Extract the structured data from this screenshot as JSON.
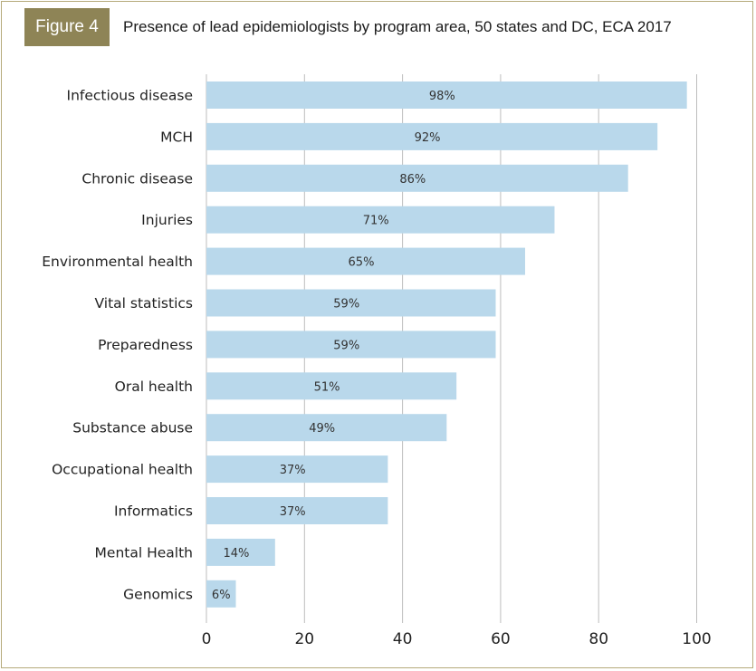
{
  "figure": {
    "tag": "Figure 4",
    "title": "Presence of lead epidemiologists by program area, 50 states and DC, ECA 2017"
  },
  "chart_data": {
    "type": "bar",
    "orientation": "horizontal",
    "title": "Presence of lead epidemiologists by program area, 50 states and DC, ECA 2017",
    "xlabel": "",
    "ylabel": "",
    "categories": [
      "Infectious disease",
      "MCH",
      "Chronic disease",
      "Injuries",
      "Environmental health",
      "Vital statistics",
      "Preparedness",
      "Oral health",
      "Substance abuse",
      "Occupational health",
      "Informatics",
      "Mental Health",
      "Genomics"
    ],
    "values": [
      98,
      92,
      86,
      71,
      65,
      59,
      59,
      51,
      49,
      37,
      37,
      14,
      6
    ],
    "value_labels": [
      "98%",
      "92%",
      "86%",
      "71%",
      "65%",
      "59%",
      "59%",
      "51%",
      "49%",
      "37%",
      "37%",
      "14%",
      "6%"
    ],
    "xlim": [
      0,
      100
    ],
    "xticks": [
      0,
      20,
      40,
      60,
      80,
      100
    ],
    "grid": "vertical",
    "legend": "none",
    "colors": {
      "bar": "#b9d8eb",
      "grid": "#bdbdbd",
      "frame": "#b5aa7a",
      "tag": "#8e8456"
    }
  }
}
